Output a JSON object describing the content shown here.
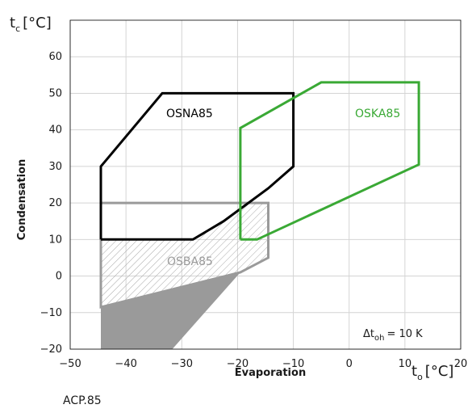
{
  "chart_data": {
    "type": "area",
    "x_axis": {
      "label": "Evaporation",
      "symbol": "t",
      "subscript": "o",
      "unit": "[°C]",
      "range": [
        -50,
        20
      ],
      "ticks": [
        -50,
        -40,
        -30,
        -20,
        -10,
        0,
        10,
        20
      ],
      "tick_labels": [
        "−50",
        "−40",
        "−30",
        "−20",
        "−10",
        "0",
        "10",
        "20"
      ]
    },
    "y_axis": {
      "label": "Condensation",
      "symbol": "t",
      "subscript": "c",
      "unit": "[°C]",
      "range": [
        -20,
        70
      ],
      "ticks": [
        -20,
        -10,
        0,
        10,
        20,
        30,
        40,
        50,
        60
      ],
      "tick_labels": [
        "−20",
        "−10",
        "0",
        "10",
        "20",
        "30",
        "40",
        "50",
        "60"
      ]
    },
    "grid": true,
    "series": [
      {
        "name": "OSNA85",
        "color": "#000000",
        "points": [
          [
            -44.5,
            10
          ],
          [
            -28,
            10
          ],
          [
            -22.5,
            15
          ],
          [
            -14.5,
            24
          ],
          [
            -10,
            30
          ],
          [
            -10,
            50
          ],
          [
            -33.5,
            50
          ],
          [
            -44.5,
            30
          ],
          [
            -44.5,
            10
          ]
        ]
      },
      {
        "name": "OSKA85",
        "color": "#3aa935",
        "points": [
          [
            -19.5,
            10
          ],
          [
            -16.5,
            10
          ],
          [
            12.5,
            30.5
          ],
          [
            12.5,
            53
          ],
          [
            -5,
            53
          ],
          [
            -19.5,
            40.5
          ],
          [
            -19.5,
            10
          ]
        ]
      },
      {
        "name": "OSBA85",
        "color": "#9a9a9a",
        "points": [
          [
            -44.5,
            20
          ],
          [
            -14.5,
            20
          ],
          [
            -14.5,
            5
          ],
          [
            -19.5,
            1
          ],
          [
            -44.5,
            -8.5
          ],
          [
            -44.5,
            20
          ]
        ]
      }
    ],
    "annotation": {
      "prefix": "Δt",
      "subscript": "oh",
      "value": "= 10 K"
    },
    "footer": "ACP.85"
  }
}
